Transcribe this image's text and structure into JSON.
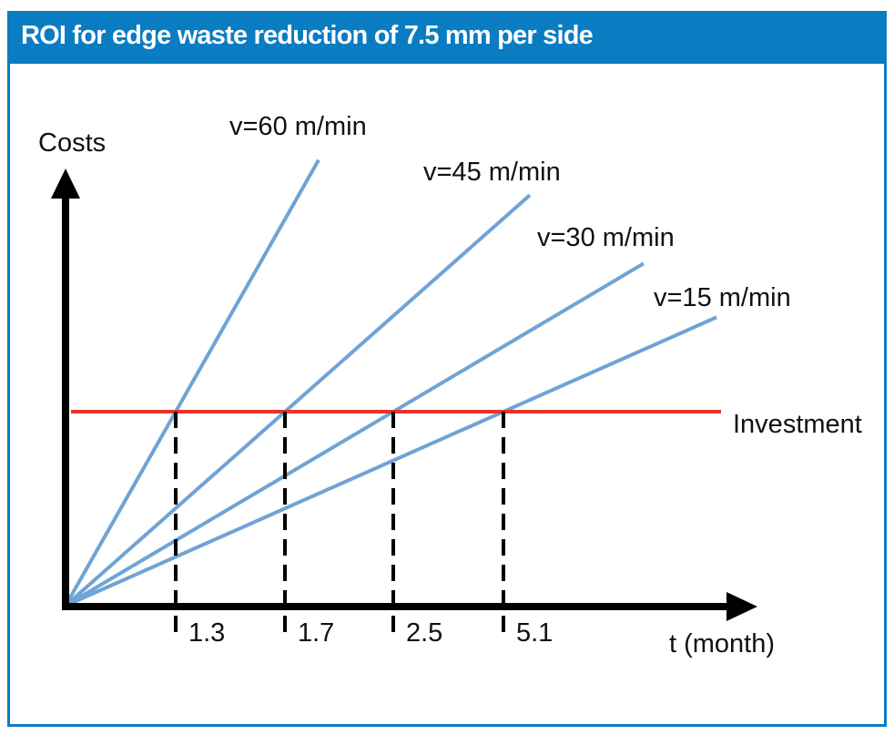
{
  "chart_data": {
    "type": "line",
    "title": "ROI for edge waste reduction of 7.5 mm per side",
    "xlabel": "t (month)",
    "ylabel": "Costs",
    "investment_label": "Investment",
    "series": [
      {
        "name": "v=60 m/min",
        "breakeven_months": 1.3
      },
      {
        "name": "v=45 m/min",
        "breakeven_months": 1.7
      },
      {
        "name": "v=30 m/min",
        "breakeven_months": 2.5
      },
      {
        "name": "v=15 m/min",
        "breakeven_months": 5.1
      }
    ],
    "breakeven_labels": [
      "1.3",
      "1.7",
      "2.5",
      "5.1"
    ],
    "colors": {
      "series": "#6fa3d6",
      "investment": "#e8342a",
      "axis": "#000000",
      "header": "#0a7cc2"
    }
  }
}
